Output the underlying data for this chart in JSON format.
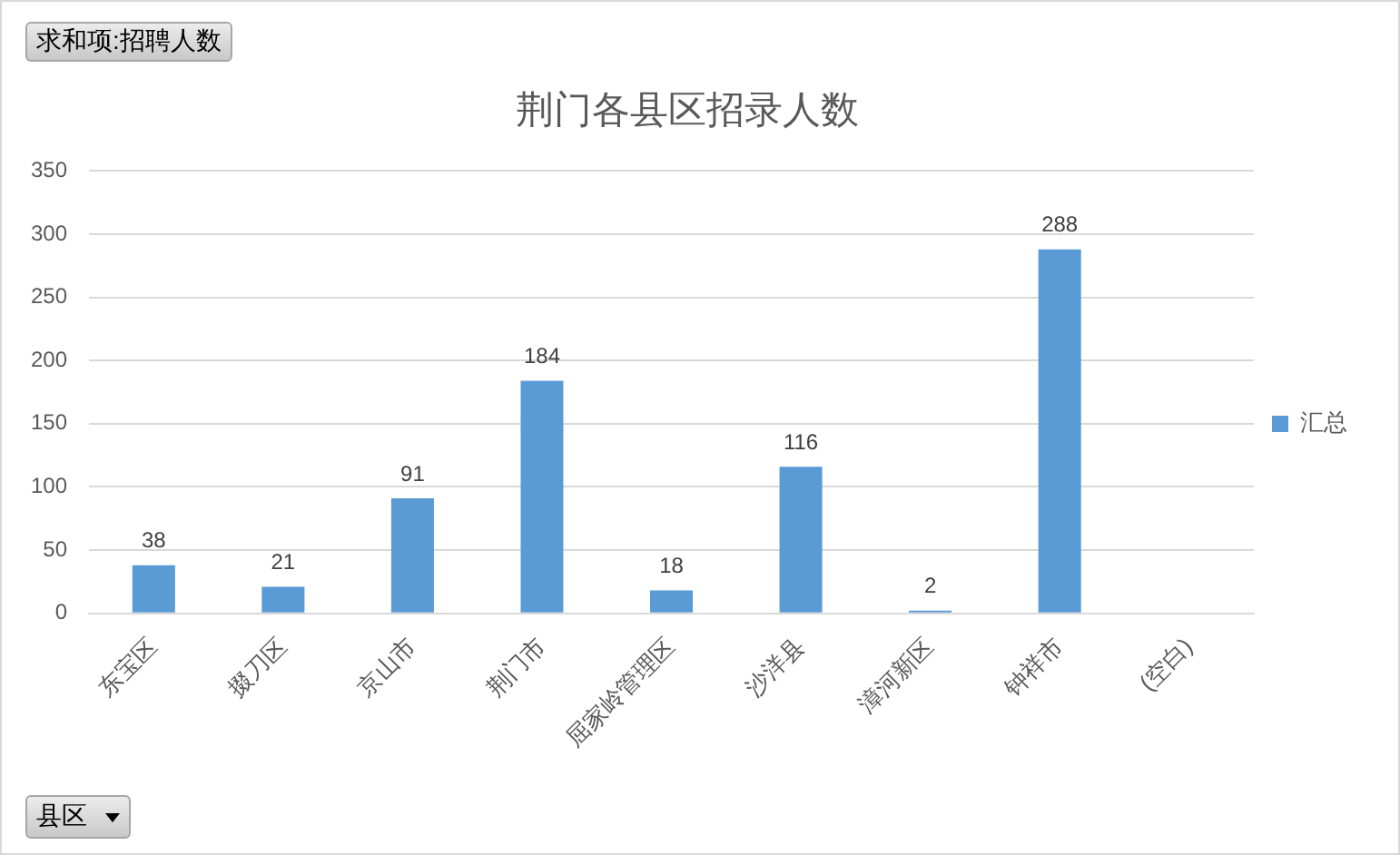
{
  "chart_data": {
    "type": "bar",
    "title": "荆门各县区招录人数",
    "categories": [
      "东宝区",
      "掇刀区",
      "京山市",
      "荆门市",
      "屈家岭管理区",
      "沙洋县",
      "漳河新区",
      "钟祥市",
      "(空白)"
    ],
    "series": [
      {
        "name": "汇总",
        "color": "#5b9bd5",
        "values": [
          38,
          21,
          91,
          184,
          18,
          116,
          2,
          288,
          null
        ]
      }
    ],
    "ylim": [
      0,
      350
    ],
    "yticks": [
      0,
      50,
      100,
      150,
      200,
      250,
      300,
      350
    ],
    "grid": "y",
    "legend": "right",
    "data_labels": true,
    "annotations": [
      "求和项:招聘人数",
      "县区"
    ]
  }
}
